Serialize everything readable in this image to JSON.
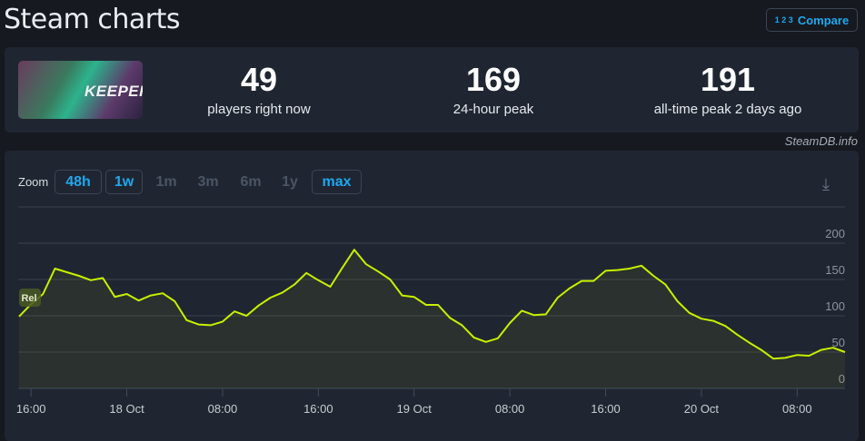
{
  "header": {
    "title": "Steam charts",
    "compare_icon": "1 2 3",
    "compare_label": "Compare"
  },
  "game": {
    "cover_text": "KEEPER"
  },
  "stats": [
    {
      "value": "49",
      "label": "players right now"
    },
    {
      "value": "169",
      "label": "24-hour peak"
    },
    {
      "value": "191",
      "label": "all-time peak 2 days ago"
    }
  ],
  "credit": "SteamDB.info",
  "zoom": {
    "label": "Zoom",
    "buttons": [
      {
        "label": "48h",
        "active": true
      },
      {
        "label": "1w",
        "active": true
      },
      {
        "label": "1m",
        "active": false
      },
      {
        "label": "3m",
        "active": false
      },
      {
        "label": "6m",
        "active": false
      },
      {
        "label": "1y",
        "active": false
      },
      {
        "label": "max",
        "active": true
      }
    ],
    "download_icon": "download-icon"
  },
  "chart_data": {
    "type": "area",
    "line_color": "#c8f000",
    "grid": true,
    "ylim": [
      0,
      250
    ],
    "y_ticks": [
      "0",
      "50",
      "100",
      "150",
      "200"
    ],
    "x_ticks": [
      {
        "at": "17 Oct 16:00",
        "label": "16:00"
      },
      {
        "at": "18 Oct 00:00",
        "label": "18 Oct"
      },
      {
        "at": "18 Oct 08:00",
        "label": "08:00"
      },
      {
        "at": "18 Oct 16:00",
        "label": "16:00"
      },
      {
        "at": "19 Oct 00:00",
        "label": "19 Oct"
      },
      {
        "at": "19 Oct 08:00",
        "label": "08:00"
      },
      {
        "at": "19 Oct 16:00",
        "label": "16:00"
      },
      {
        "at": "20 Oct 00:00",
        "label": "20 Oct"
      },
      {
        "at": "20 Oct 08:00",
        "label": "08:00"
      }
    ],
    "annotation": "Rel",
    "x": [
      "17 Oct 15:00",
      "17 Oct 16:00",
      "17 Oct 17:00",
      "17 Oct 18:00",
      "17 Oct 19:00",
      "17 Oct 20:00",
      "17 Oct 21:00",
      "17 Oct 22:00",
      "17 Oct 23:00",
      "18 Oct 00:00",
      "18 Oct 01:00",
      "18 Oct 02:00",
      "18 Oct 03:00",
      "18 Oct 04:00",
      "18 Oct 05:00",
      "18 Oct 06:00",
      "18 Oct 07:00",
      "18 Oct 08:00",
      "18 Oct 09:00",
      "18 Oct 10:00",
      "18 Oct 11:00",
      "18 Oct 12:00",
      "18 Oct 13:00",
      "18 Oct 14:00",
      "18 Oct 15:00",
      "18 Oct 16:00",
      "18 Oct 17:00",
      "18 Oct 18:00",
      "18 Oct 19:00",
      "18 Oct 20:00",
      "18 Oct 21:00",
      "18 Oct 22:00",
      "18 Oct 23:00",
      "19 Oct 00:00",
      "19 Oct 01:00",
      "19 Oct 02:00",
      "19 Oct 03:00",
      "19 Oct 04:00",
      "19 Oct 05:00",
      "19 Oct 06:00",
      "19 Oct 07:00",
      "19 Oct 08:00",
      "19 Oct 09:00",
      "19 Oct 10:00",
      "19 Oct 11:00",
      "19 Oct 12:00",
      "19 Oct 13:00",
      "19 Oct 14:00",
      "19 Oct 15:00",
      "19 Oct 16:00",
      "19 Oct 17:00",
      "19 Oct 18:00",
      "19 Oct 19:00",
      "19 Oct 20:00",
      "19 Oct 21:00",
      "19 Oct 22:00",
      "19 Oct 23:00",
      "20 Oct 00:00",
      "20 Oct 01:00",
      "20 Oct 02:00",
      "20 Oct 03:00",
      "20 Oct 04:00",
      "20 Oct 05:00",
      "20 Oct 06:00",
      "20 Oct 07:00",
      "20 Oct 08:00",
      "20 Oct 09:00",
      "20 Oct 10:00",
      "20 Oct 11:00",
      "20 Oct 12:00"
    ],
    "values": [
      99,
      116,
      130,
      165,
      160,
      155,
      149,
      152,
      126,
      130,
      121,
      128,
      131,
      120,
      94,
      88,
      87,
      92,
      106,
      100,
      114,
      125,
      132,
      143,
      159,
      149,
      140,
      166,
      191,
      171,
      161,
      150,
      128,
      126,
      115,
      115,
      97,
      87,
      70,
      64,
      69,
      90,
      107,
      101,
      102,
      125,
      138,
      148,
      148,
      162,
      163,
      165,
      169,
      155,
      143,
      120,
      104,
      96,
      93,
      86,
      74,
      63,
      53,
      41,
      42,
      46,
      45,
      53,
      56,
      50
    ]
  }
}
